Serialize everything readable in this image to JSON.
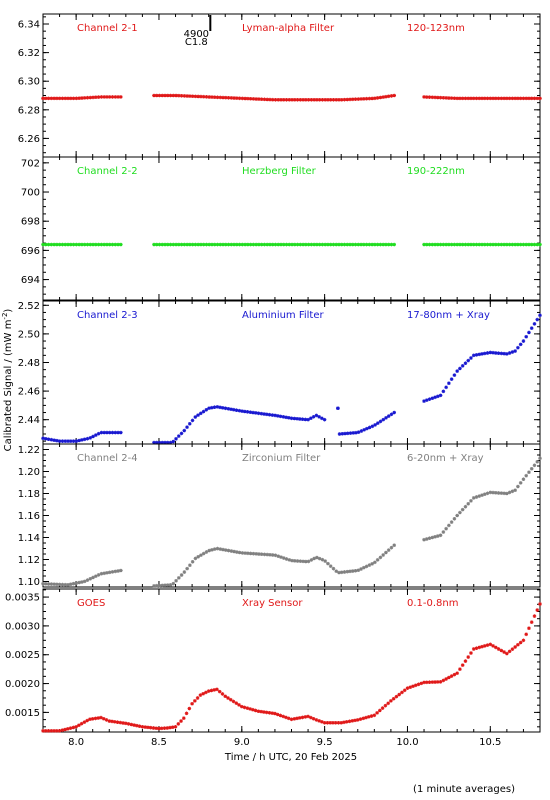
{
  "figure": {
    "ylabel": "Calibrated Signal / (mW m",
    "ylabel_sup": "-2",
    "ylabel_end": ")",
    "xlabel": "Time / h UTC, 20 Feb 2025",
    "footnote": "(1 minute averages)"
  },
  "chart_data": [
    {
      "type": "scatter",
      "labels": [
        "Channel 2-1",
        "Lyman-alpha Filter",
        "120-123nm"
      ],
      "color": "#e01818",
      "ylim": [
        6.247,
        6.347
      ],
      "yticks": [
        6.26,
        6.28,
        6.3,
        6.32,
        6.34
      ],
      "ytick_labels": [
        "6.26",
        "6.28",
        "6.30",
        "6.32",
        "6.34"
      ],
      "annotation": {
        "lines": [
          "4900",
          "C1.8"
        ],
        "x": 8.81
      },
      "segments": [
        {
          "x": [
            7.8,
            8.0,
            8.15,
            8.27
          ],
          "y": [
            6.288,
            6.288,
            6.289,
            6.289
          ]
        },
        {
          "x": [
            8.47,
            8.6,
            8.8,
            9.0,
            9.2,
            9.4,
            9.6,
            9.8,
            9.92
          ],
          "y": [
            6.29,
            6.29,
            6.289,
            6.288,
            6.287,
            6.287,
            6.287,
            6.288,
            6.29
          ]
        },
        {
          "x": [
            10.1,
            10.3,
            10.5,
            10.7,
            10.8
          ],
          "y": [
            6.289,
            6.288,
            6.288,
            6.288,
            6.288
          ]
        }
      ]
    },
    {
      "type": "scatter",
      "labels": [
        "Channel 2-2",
        "Herzberg Filter",
        "190-222nm"
      ],
      "color": "#20dd20",
      "ylim": [
        692.6,
        702.4
      ],
      "yticks": [
        694,
        696,
        698,
        700,
        702
      ],
      "ytick_labels": [
        "694",
        "696",
        "698",
        "700",
        "702"
      ],
      "segments": [
        {
          "x": [
            7.8,
            8.27
          ],
          "y": [
            696.4,
            696.4
          ]
        },
        {
          "x": [
            8.47,
            9.0,
            9.5,
            9.92
          ],
          "y": [
            696.4,
            696.4,
            696.4,
            696.4
          ]
        },
        {
          "x": [
            10.1,
            10.5,
            10.8
          ],
          "y": [
            696.4,
            696.4,
            696.4
          ]
        }
      ]
    },
    {
      "type": "scatter",
      "labels": [
        "Channel 2-3",
        "Aluminium Filter",
        "17-80nm + Xray"
      ],
      "color": "#1818d0",
      "ylim": [
        2.423,
        2.523
      ],
      "yticks": [
        2.44,
        2.46,
        2.48,
        2.5,
        2.52
      ],
      "ytick_labels": [
        "2.44",
        "2.46",
        "2.48",
        "2.50",
        "2.52"
      ],
      "segments": [
        {
          "x": [
            7.8,
            7.9,
            8.0,
            8.08,
            8.15,
            8.27
          ],
          "y": [
            2.427,
            2.425,
            2.425,
            2.427,
            2.431,
            2.431
          ]
        },
        {
          "x": [
            8.47,
            8.58,
            8.65,
            8.72,
            8.8,
            8.85,
            9.0,
            9.2,
            9.3,
            9.4,
            9.45,
            9.5
          ],
          "y": [
            2.424,
            2.424,
            2.432,
            2.442,
            2.448,
            2.449,
            2.446,
            2.443,
            2.441,
            2.44,
            2.443,
            2.44
          ]
        },
        {
          "x": [
            9.58
          ],
          "y": [
            2.448
          ]
        },
        {
          "x": [
            9.59,
            9.7,
            9.8,
            9.92
          ],
          "y": [
            2.43,
            2.431,
            2.436,
            2.445
          ]
        },
        {
          "x": [
            10.1,
            10.2,
            10.3,
            10.4,
            10.5,
            10.6,
            10.65,
            10.7,
            10.8
          ],
          "y": [
            2.453,
            2.457,
            2.474,
            2.485,
            2.487,
            2.486,
            2.488,
            2.495,
            2.513
          ]
        }
      ]
    },
    {
      "type": "scatter",
      "labels": [
        "Channel 2-4",
        "Zirconium Filter",
        "6-20nm + Xray"
      ],
      "color": "#808080",
      "ylim": [
        1.095,
        1.225
      ],
      "yticks": [
        1.1,
        1.12,
        1.14,
        1.16,
        1.18,
        1.2,
        1.22
      ],
      "ytick_labels": [
        "1.10",
        "1.12",
        "1.14",
        "1.16",
        "1.18",
        "1.20",
        "1.22"
      ],
      "segments": [
        {
          "x": [
            7.8,
            7.95,
            8.05,
            8.15,
            8.27
          ],
          "y": [
            1.098,
            1.097,
            1.1,
            1.107,
            1.11
          ]
        },
        {
          "x": [
            8.47,
            8.58,
            8.65,
            8.72,
            8.8,
            8.85,
            9.0,
            9.2,
            9.3,
            9.4,
            9.45,
            9.5,
            9.58,
            9.7,
            9.8,
            9.92
          ],
          "y": [
            1.096,
            1.097,
            1.108,
            1.121,
            1.128,
            1.13,
            1.126,
            1.124,
            1.119,
            1.118,
            1.122,
            1.119,
            1.108,
            1.11,
            1.117,
            1.133
          ]
        },
        {
          "x": [
            10.1,
            10.2,
            10.3,
            10.4,
            10.5,
            10.6,
            10.65,
            10.7,
            10.8
          ],
          "y": [
            1.138,
            1.142,
            1.16,
            1.176,
            1.181,
            1.18,
            1.183,
            1.193,
            1.212
          ]
        }
      ]
    },
    {
      "type": "scatter",
      "labels": [
        "GOES",
        "Xray Sensor",
        "0.1-0.8nm"
      ],
      "color": "#e01818",
      "ylim": [
        0.00116,
        0.00364
      ],
      "yticks": [
        0.0015,
        0.002,
        0.0025,
        0.003,
        0.0035
      ],
      "ytick_labels": [
        "0.0015",
        "0.0020",
        "0.0025",
        "0.0030",
        "0.0035"
      ],
      "segments": [
        {
          "x": [
            7.8,
            7.9,
            8.0,
            8.08,
            8.15,
            8.2,
            8.3,
            8.4,
            8.5,
            8.55,
            8.6,
            8.65,
            8.7,
            8.75,
            8.8,
            8.85,
            8.9,
            9.0,
            9.1,
            9.2,
            9.3,
            9.4,
            9.45,
            9.5,
            9.6,
            9.7,
            9.8,
            9.9,
            10.0,
            10.1,
            10.2,
            10.3,
            10.4,
            10.5,
            10.6,
            10.7,
            10.8
          ],
          "y": [
            0.00118,
            0.00118,
            0.00125,
            0.00138,
            0.00141,
            0.00135,
            0.00131,
            0.00125,
            0.00122,
            0.00123,
            0.00125,
            0.0014,
            0.00165,
            0.0018,
            0.00187,
            0.0019,
            0.00178,
            0.0016,
            0.00152,
            0.00148,
            0.00138,
            0.00143,
            0.00137,
            0.00132,
            0.00132,
            0.00137,
            0.00145,
            0.0017,
            0.00192,
            0.00202,
            0.00203,
            0.00218,
            0.0026,
            0.00268,
            0.00252,
            0.00275,
            0.00338
          ]
        }
      ]
    }
  ],
  "xaxis": {
    "xlim": [
      7.8,
      10.8
    ],
    "ticks": [
      8.0,
      8.5,
      9.0,
      9.5,
      10.0,
      10.5
    ],
    "tick_labels": [
      "8.0",
      "8.5",
      "9.0",
      "9.5",
      "10.0",
      "10.5"
    ]
  }
}
